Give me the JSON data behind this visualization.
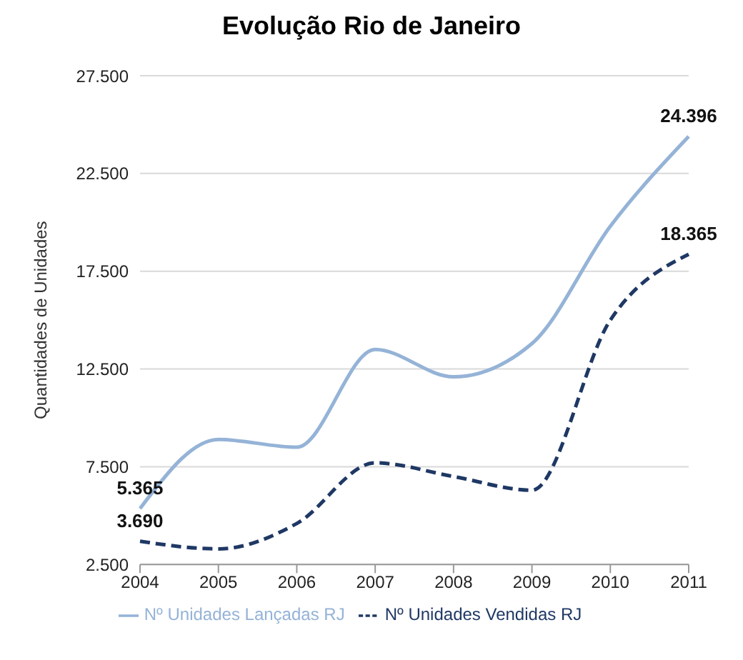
{
  "chart_data": {
    "type": "line",
    "title": "Evolução Rio de Janeiro",
    "ylabel": "Quantidades de Unidades",
    "categories": [
      "2004",
      "2005",
      "2006",
      "2007",
      "2008",
      "2009",
      "2010",
      "2011"
    ],
    "series": [
      {
        "name": "Nº Unidades Lançadas RJ",
        "color": "#95b3d7",
        "line_style": "solid",
        "values": [
          5365,
          8900,
          8500,
          13500,
          12100,
          13800,
          19800,
          24396
        ],
        "value_labels": [
          "5.365",
          null,
          null,
          null,
          null,
          null,
          null,
          "24.396"
        ]
      },
      {
        "name": "Nº Unidades Vendidas RJ",
        "color": "#1f3864",
        "line_style": "dashed",
        "values": [
          3690,
          3300,
          4600,
          7700,
          7000,
          6300,
          15000,
          18365
        ],
        "value_labels": [
          "3.690",
          null,
          null,
          null,
          null,
          null,
          null,
          "18.365"
        ]
      }
    ],
    "ylim": [
      2500,
      27500
    ],
    "yticks": [
      {
        "value": 2500,
        "label": "2.500"
      },
      {
        "value": 7500,
        "label": "7.500"
      },
      {
        "value": 12500,
        "label": "12.500"
      },
      {
        "value": 17500,
        "label": "17.500"
      },
      {
        "value": 22500,
        "label": "22.500"
      },
      {
        "value": 27500,
        "label": "27.500"
      }
    ],
    "grid": "y",
    "legend": "bottom",
    "marker": "none"
  }
}
